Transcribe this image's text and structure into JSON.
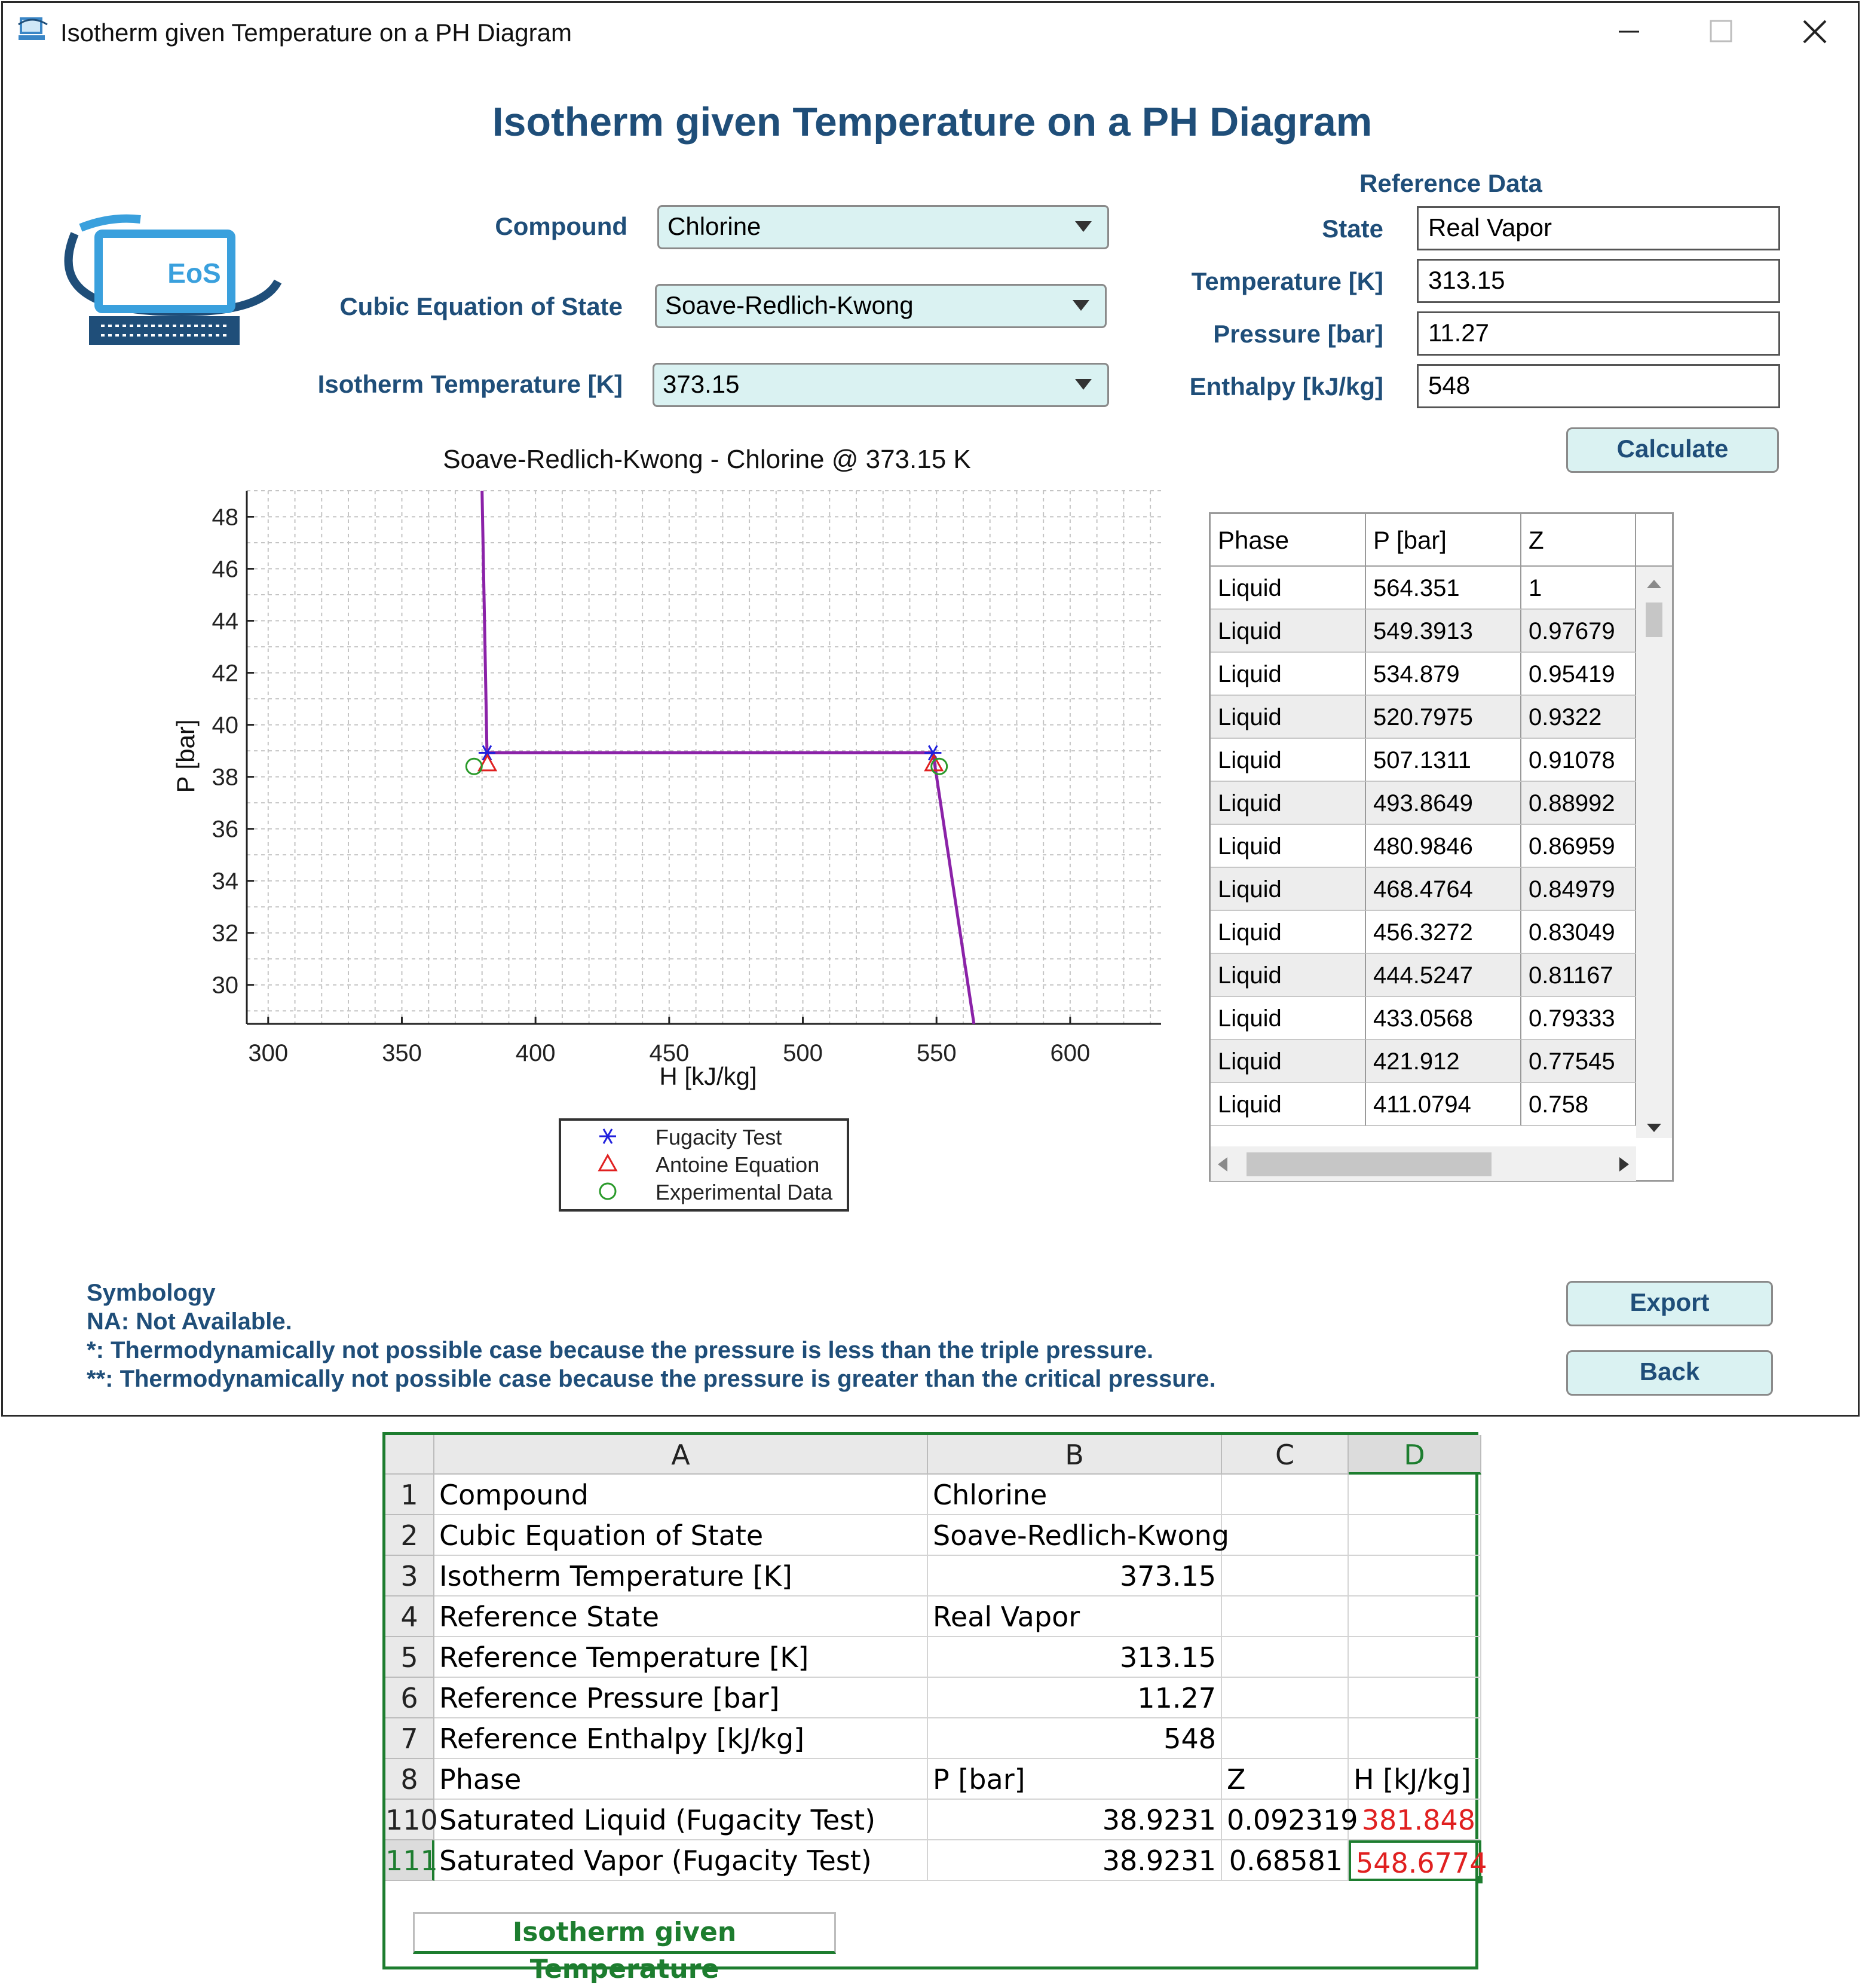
{
  "window": {
    "title": "Isotherm given Temperature on a PH Diagram",
    "controls": {
      "minimize": "minimize-icon",
      "maximize": "maximize-icon",
      "close": "close-icon"
    }
  },
  "heading": "Isotherm given Temperature on a PH Diagram",
  "logo": {
    "text": "EoS"
  },
  "form": {
    "compound_label": "Compound",
    "compound_value": "Chlorine",
    "eos_label": "Cubic Equation of State",
    "eos_value": "Soave-Redlich-Kwong",
    "temp_label": "Isotherm Temperature [K]",
    "temp_value": "373.15"
  },
  "reference": {
    "title": "Reference Data",
    "state_label": "State",
    "state_value": "Real Vapor",
    "temperature_label": "Temperature [K]",
    "temperature_value": "313.15",
    "pressure_label": "Pressure [bar]",
    "pressure_value": "11.27",
    "enthalpy_label": "Enthalpy [kJ/kg]",
    "enthalpy_value": "548"
  },
  "buttons": {
    "calculate": "Calculate",
    "export": "Export",
    "back": "Back"
  },
  "chart_data": {
    "type": "line",
    "title": "Soave-Redlich-Kwong - Chlorine @ 373.15 K",
    "xlabel": "H [kJ/kg]",
    "ylabel": "P [bar]",
    "xlim": [
      292,
      634
    ],
    "ylim": [
      28.5,
      49
    ],
    "xticks": [
      300,
      350,
      400,
      450,
      500,
      550,
      600
    ],
    "yticks": [
      30,
      32,
      34,
      36,
      38,
      40,
      42,
      44,
      46,
      48
    ],
    "grid": true,
    "series": [
      {
        "type": "line",
        "color": "#8b22a8",
        "x": [
          380,
          381.848,
          548.6774,
          564
        ],
        "y": [
          49,
          38.9231,
          38.9231,
          28.5
        ]
      }
    ],
    "markers": [
      {
        "name": "Fugacity Test",
        "symbol": "asterisk",
        "color": "#2020dd",
        "x": [
          381.848,
          548.6774
        ],
        "y": [
          38.9231,
          38.9231
        ]
      },
      {
        "name": "Antoine Equation",
        "symbol": "triangle",
        "color": "#e02020",
        "x": [
          382,
          549
        ],
        "y": [
          38.5,
          38.5
        ]
      },
      {
        "name": "Experimental Data",
        "symbol": "circle",
        "color": "#2a9a2a",
        "x": [
          377,
          551
        ],
        "y": [
          38.4,
          38.4
        ]
      }
    ],
    "legend": {
      "position": "below",
      "entries": [
        "Fugacity Test",
        "Antoine Equation",
        "Experimental Data"
      ]
    }
  },
  "table": {
    "headers": [
      "Phase",
      "P [bar]",
      "Z"
    ],
    "rows": [
      [
        "Liquid",
        "564.351",
        "1"
      ],
      [
        "Liquid",
        "549.3913",
        "0.97679"
      ],
      [
        "Liquid",
        "534.879",
        "0.95419"
      ],
      [
        "Liquid",
        "520.7975",
        "0.9322"
      ],
      [
        "Liquid",
        "507.1311",
        "0.91078"
      ],
      [
        "Liquid",
        "493.8649",
        "0.88992"
      ],
      [
        "Liquid",
        "480.9846",
        "0.86959"
      ],
      [
        "Liquid",
        "468.4764",
        "0.84979"
      ],
      [
        "Liquid",
        "456.3272",
        "0.83049"
      ],
      [
        "Liquid",
        "444.5247",
        "0.81167"
      ],
      [
        "Liquid",
        "433.0568",
        "0.79333"
      ],
      [
        "Liquid",
        "421.912",
        "0.77545"
      ],
      [
        "Liquid",
        "411.0794",
        "0.758"
      ]
    ]
  },
  "symbology": {
    "title": "Symbology",
    "lines": [
      "NA: Not Available.",
      "*: Thermodynamically not possible case because the pressure is less than the triple pressure.",
      "**: Thermodynamically not possible case because the pressure is greater than the critical pressure."
    ]
  },
  "spreadsheet": {
    "columns": [
      "A",
      "B",
      "C",
      "D"
    ],
    "selected_column": "D",
    "rows": [
      {
        "num": "1",
        "a": "Compound",
        "b": "Chlorine",
        "c": "",
        "d": ""
      },
      {
        "num": "2",
        "a": "Cubic Equation of State",
        "b": "Soave-Redlich-Kwong",
        "c": "",
        "d": ""
      },
      {
        "num": "3",
        "a": "Isotherm Temperature [K]",
        "b": "373.15",
        "c": "",
        "d": ""
      },
      {
        "num": "4",
        "a": "Reference State",
        "b": "Real Vapor",
        "c": "",
        "d": ""
      },
      {
        "num": "5",
        "a": "Reference Temperature [K]",
        "b": "313.15",
        "c": "",
        "d": ""
      },
      {
        "num": "6",
        "a": "Reference Pressure [bar]",
        "b": "11.27",
        "c": "",
        "d": ""
      },
      {
        "num": "7",
        "a": "Reference Enthalpy [kJ/kg]",
        "b": "548",
        "c": "",
        "d": ""
      },
      {
        "num": "8",
        "a": "Phase",
        "b": "P [bar]",
        "c": "Z",
        "d": "H [kJ/kg]"
      },
      {
        "num": "110",
        "a": "Saturated Liquid (Fugacity Test)",
        "b": "38.9231",
        "c": "0.092319",
        "d": "381.848"
      },
      {
        "num": "111",
        "a": "Saturated Vapor (Fugacity Test)",
        "b": "38.9231",
        "c": "0.68581",
        "d": "548.6774"
      }
    ],
    "sheet_tab": "Isotherm given Temperature",
    "colors": {
      "accent": "#1d7d2f",
      "highlight": "#e02020"
    }
  }
}
